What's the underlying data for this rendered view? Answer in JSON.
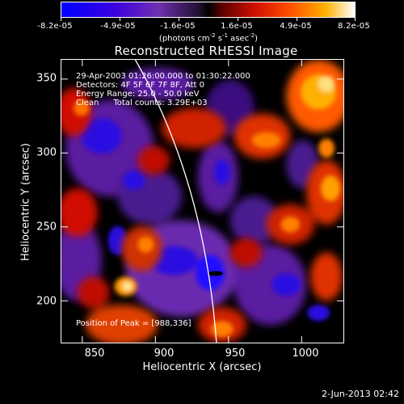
{
  "colorbar": {
    "ticks": [
      "-8.2e-05",
      "-4.9e-05",
      "-1.6e-05",
      "1.6e-05",
      "4.9e-05",
      "8.2e-05"
    ],
    "unit_main": "(photons cm",
    "unit_exp1": "-2",
    "unit_mid": " s",
    "unit_exp2": "-1",
    "unit_mid2": " asec",
    "unit_exp3": "-2",
    "unit_end": ")"
  },
  "plot": {
    "title": "Reconstructed RHESSI Image",
    "info_time": "29-Apr-2003 01:26:00.000 to 01:30:22.000",
    "info_detectors": "Detectors: 4F 5F 6F 7F 8F, Att 0",
    "info_energy": "Energy Range: 25.0 - 50.0 keV",
    "info_method": "Clean",
    "info_counts": "Total counts: 3.29E+03",
    "peak_text": "Position of Peak = [988,336]"
  },
  "axes": {
    "xlabel": "Heliocentric X (arcsec)",
    "ylabel": "Heliocentric Y (arcsec)",
    "xticks": [
      "850",
      "900",
      "950",
      "1000"
    ],
    "yticks": [
      "350",
      "300",
      "250",
      "200"
    ],
    "xlim": [
      830,
      1022
    ],
    "ylim": [
      170,
      363
    ]
  },
  "footer": {
    "timestamp": "2-Jun-2013 02:42"
  },
  "colors": {
    "background": "#000000",
    "limb_line": "#ffffff",
    "colormap": [
      "#0000ff",
      "#4b00c8",
      "#6a2aa6",
      "#000000",
      "#c00000",
      "#ff4000",
      "#ff9a00",
      "#ffffff"
    ]
  }
}
